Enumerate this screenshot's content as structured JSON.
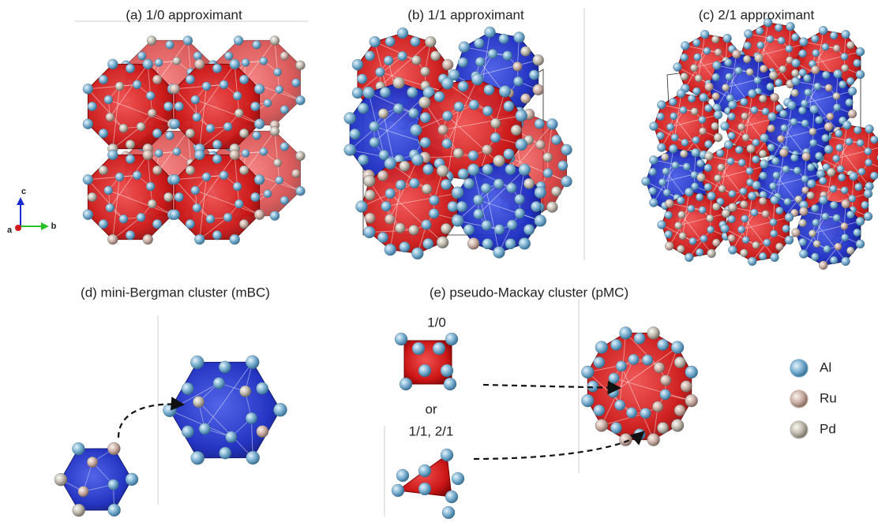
{
  "panels": [
    {
      "title": "(a) 1/0 approximant"
    },
    {
      "title": "(b) 1/1 approximant"
    },
    {
      "title": "(c) 2/1 approximant"
    },
    {
      "title": "(d) mini-Bergman cluster (mBC)"
    },
    {
      "title": "(e) pseudo-Mackay cluster (pMC)"
    }
  ],
  "annotations": [
    "1/0",
    "or",
    "1/1, 2/1"
  ],
  "axes": [
    "c",
    "a",
    "b"
  ],
  "legend": [
    {
      "label": "Al",
      "color": "#6fa6c8"
    },
    {
      "label": "Ru",
      "color": "#c9aea4"
    },
    {
      "label": "Pd",
      "color": "#bdb6ac"
    }
  ]
}
